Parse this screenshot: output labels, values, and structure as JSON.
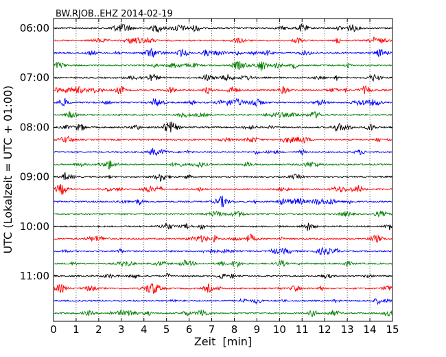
{
  "chart_data": {
    "type": "line",
    "title": "BW.RJOB..EHZ 2014-02-19",
    "xlabel": "Zeit  [min]",
    "ylabel": "UTC (Lokalzeit = UTC + 01:00)",
    "xlim": [
      0,
      15
    ],
    "x_ticks": [
      "0",
      "1",
      "2",
      "3",
      "4",
      "5",
      "6",
      "7",
      "8",
      "9",
      "10",
      "11",
      "12",
      "13",
      "14",
      "15"
    ],
    "y_ticks": [
      "06:00",
      "07:00",
      "08:00",
      "09:00",
      "10:00",
      "11:00"
    ],
    "grid": true,
    "trace_colors": [
      "#000000",
      "#ff0000",
      "#0000ff",
      "#007f00"
    ],
    "trace_start_times": [
      "06:00",
      "06:15",
      "06:30",
      "06:45",
      "07:00",
      "07:15",
      "07:30",
      "07:45",
      "08:00",
      "08:15",
      "08:30",
      "08:45",
      "09:00",
      "09:15",
      "09:30",
      "09:45",
      "10:00",
      "10:15",
      "10:30",
      "10:45",
      "11:00",
      "11:15",
      "11:30",
      "11:45"
    ]
  }
}
